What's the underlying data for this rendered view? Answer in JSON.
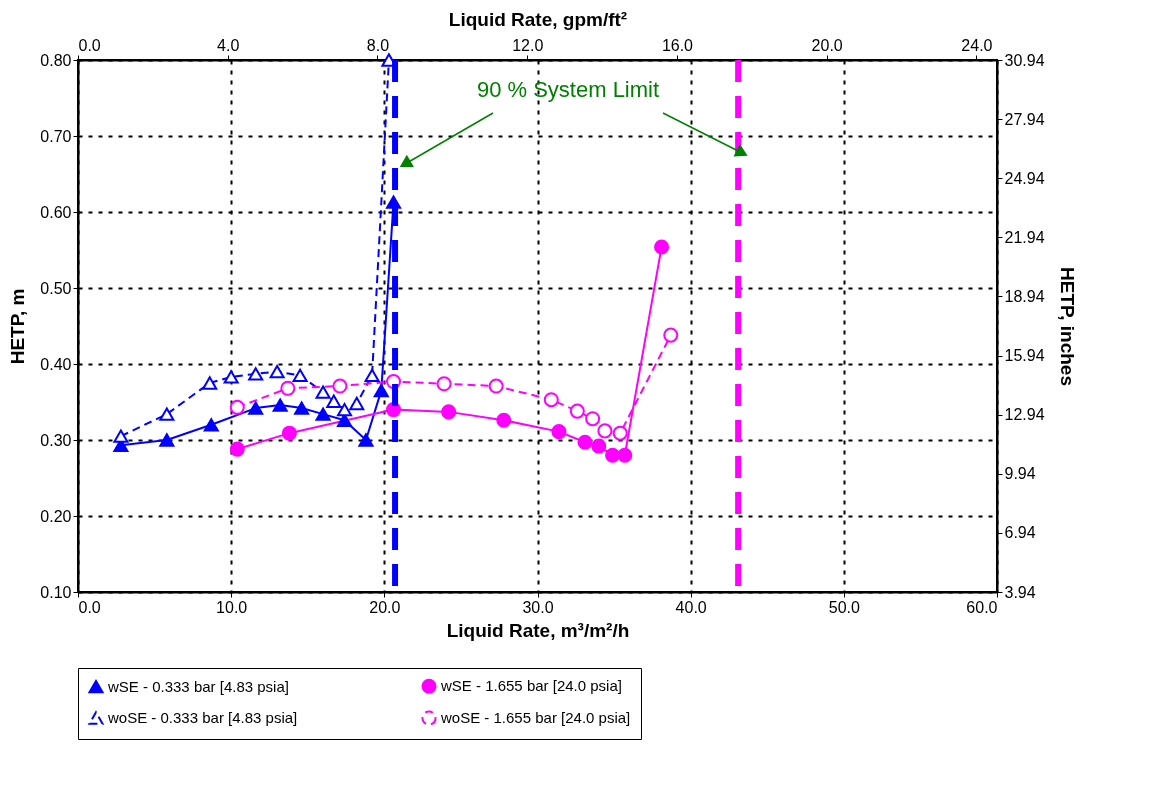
{
  "chart_data": {
    "type": "line",
    "xlabel": "Liquid Rate,  m³/m²/h",
    "x2label": "Liquid Rate, gpm/ft²",
    "ylabel": "HETP, m",
    "y2label": "HETP, inches",
    "xlim": [
      0,
      60
    ],
    "xticks": [
      {
        "value": 0,
        "label": "0.0"
      },
      {
        "value": 10,
        "label": "10.0"
      },
      {
        "value": 20,
        "label": "20.0"
      },
      {
        "value": 30,
        "label": "30.0"
      },
      {
        "value": 40,
        "label": "40.0"
      },
      {
        "value": 50,
        "label": "50.0"
      },
      {
        "value": 60,
        "label": "60.0"
      }
    ],
    "x2lim": [
      0,
      24.55
    ],
    "x2ticks": [
      {
        "value": 0,
        "label": "0.0"
      },
      {
        "value": 4,
        "label": "4.0"
      },
      {
        "value": 8,
        "label": "8.0"
      },
      {
        "value": 12,
        "label": "12.0"
      },
      {
        "value": 16,
        "label": "16.0"
      },
      {
        "value": 20,
        "label": "20.0"
      },
      {
        "value": 24,
        "label": "24.0"
      }
    ],
    "ylim": [
      0.1,
      0.8
    ],
    "yticks": [
      {
        "value": 0.1,
        "label": "0.10"
      },
      {
        "value": 0.2,
        "label": "0.20"
      },
      {
        "value": 0.3,
        "label": "0.30"
      },
      {
        "value": 0.4,
        "label": "0.40"
      },
      {
        "value": 0.5,
        "label": "0.50"
      },
      {
        "value": 0.6,
        "label": "0.60"
      },
      {
        "value": 0.7,
        "label": "0.70"
      },
      {
        "value": 0.8,
        "label": "0.80"
      }
    ],
    "y2lim": [
      3.94,
      30.94
    ],
    "y2ticks": [
      3.94,
      6.94,
      9.94,
      12.94,
      15.94,
      18.94,
      21.94,
      24.94,
      27.94,
      30.94
    ],
    "grid": true,
    "legend": "bottom",
    "series": [
      {
        "name": "wSE - 0.333 bar [4.83 psia]",
        "color": "#0000ff",
        "marker": "triangle",
        "line_style": "solid",
        "x": [
          2.8,
          5.8,
          8.7,
          11.6,
          13.2,
          14.6,
          16.0,
          17.4,
          18.8,
          19.8,
          20.6
        ],
        "values": [
          0.293,
          0.3,
          0.32,
          0.342,
          0.346,
          0.342,
          0.334,
          0.326,
          0.3,
          0.365,
          0.613
        ]
      },
      {
        "name": "wSE - 1.655 bar [24.0 psia]",
        "color": "#ff00ff",
        "marker": "circle",
        "line_style": "solid",
        "x": [
          10.4,
          13.8,
          20.6,
          24.2,
          27.8,
          31.4,
          33.1,
          34.0,
          34.9,
          35.7,
          38.1
        ],
        "values": [
          0.288,
          0.309,
          0.34,
          0.337,
          0.326,
          0.311,
          0.297,
          0.292,
          0.28,
          0.28,
          0.554
        ]
      },
      {
        "name": "woSE - 0.333 bar [4.83 psia]",
        "color": "#0000ff",
        "marker": "triangle",
        "line_style": "dashed",
        "x": [
          2.8,
          5.8,
          8.6,
          10.0,
          11.6,
          13.0,
          14.5,
          16.0,
          16.7,
          17.4,
          18.2,
          19.2,
          20.3
        ],
        "values": [
          0.305,
          0.334,
          0.375,
          0.383,
          0.387,
          0.39,
          0.385,
          0.363,
          0.351,
          0.34,
          0.348,
          0.385,
          0.8
        ]
      },
      {
        "name": "woSE - 1.655 bar [24.0 psia]",
        "color": "#ff00ff",
        "marker": "circle",
        "line_style": "dashed",
        "x": [
          10.4,
          13.7,
          17.1,
          20.6,
          23.9,
          27.3,
          30.9,
          32.6,
          33.6,
          34.4,
          35.4,
          38.7
        ],
        "values": [
          0.343,
          0.368,
          0.371,
          0.377,
          0.374,
          0.371,
          0.353,
          0.338,
          0.328,
          0.312,
          0.309,
          0.438
        ]
      }
    ],
    "ref_lines": [
      {
        "axis": "x",
        "value": 20.7,
        "color": "#0000ff",
        "line_style": "dashed"
      },
      {
        "axis": "x",
        "value": 43.1,
        "color": "#ff00ff",
        "line_style": "dashed"
      }
    ],
    "annotations": [
      "90 % System Limit"
    ]
  }
}
